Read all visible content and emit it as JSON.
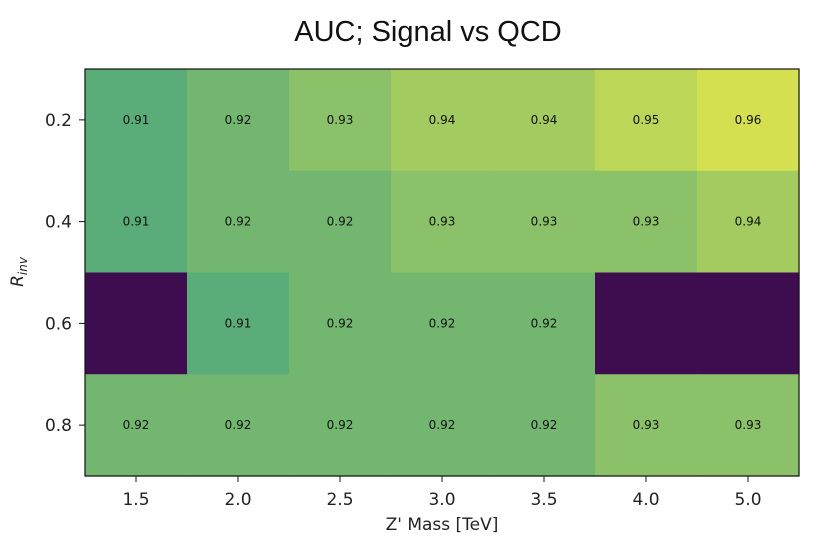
{
  "chart_data": {
    "type": "heatmap",
    "title": "AUC; Signal vs QCD",
    "xlabel": "Z' Mass [TeV]",
    "ylabel": "R_inv",
    "ylabel_main": "R",
    "ylabel_sub": "inv",
    "x_categories": [
      "1.5",
      "2.0",
      "2.5",
      "3.0",
      "3.5",
      "4.0",
      "5.0"
    ],
    "y_categories": [
      "0.2",
      "0.4",
      "0.6",
      "0.8"
    ],
    "values": [
      [
        0.91,
        0.92,
        0.93,
        0.94,
        0.94,
        0.95,
        0.96
      ],
      [
        0.91,
        0.92,
        0.92,
        0.93,
        0.93,
        0.93,
        0.94
      ],
      [
        null,
        0.91,
        0.92,
        0.92,
        0.92,
        null,
        null
      ],
      [
        0.92,
        0.92,
        0.92,
        0.92,
        0.92,
        0.93,
        0.93
      ]
    ],
    "cell_labels": [
      [
        "0.91",
        "0.92",
        "0.93",
        "0.94",
        "0.94",
        "0.95",
        "0.96"
      ],
      [
        "0.91",
        "0.92",
        "0.92",
        "0.93",
        "0.93",
        "0.93",
        "0.94"
      ],
      [
        "",
        "0.91",
        "0.92",
        "0.92",
        "0.92",
        "",
        ""
      ],
      [
        "0.92",
        "0.92",
        "0.92",
        "0.92",
        "0.92",
        "0.93",
        "0.93"
      ]
    ],
    "colormap": "viridis",
    "missing_color": "#3e0d4f",
    "color_low": "#5aac78",
    "color_high": "#d4e050",
    "grid": false,
    "legend": "none"
  }
}
